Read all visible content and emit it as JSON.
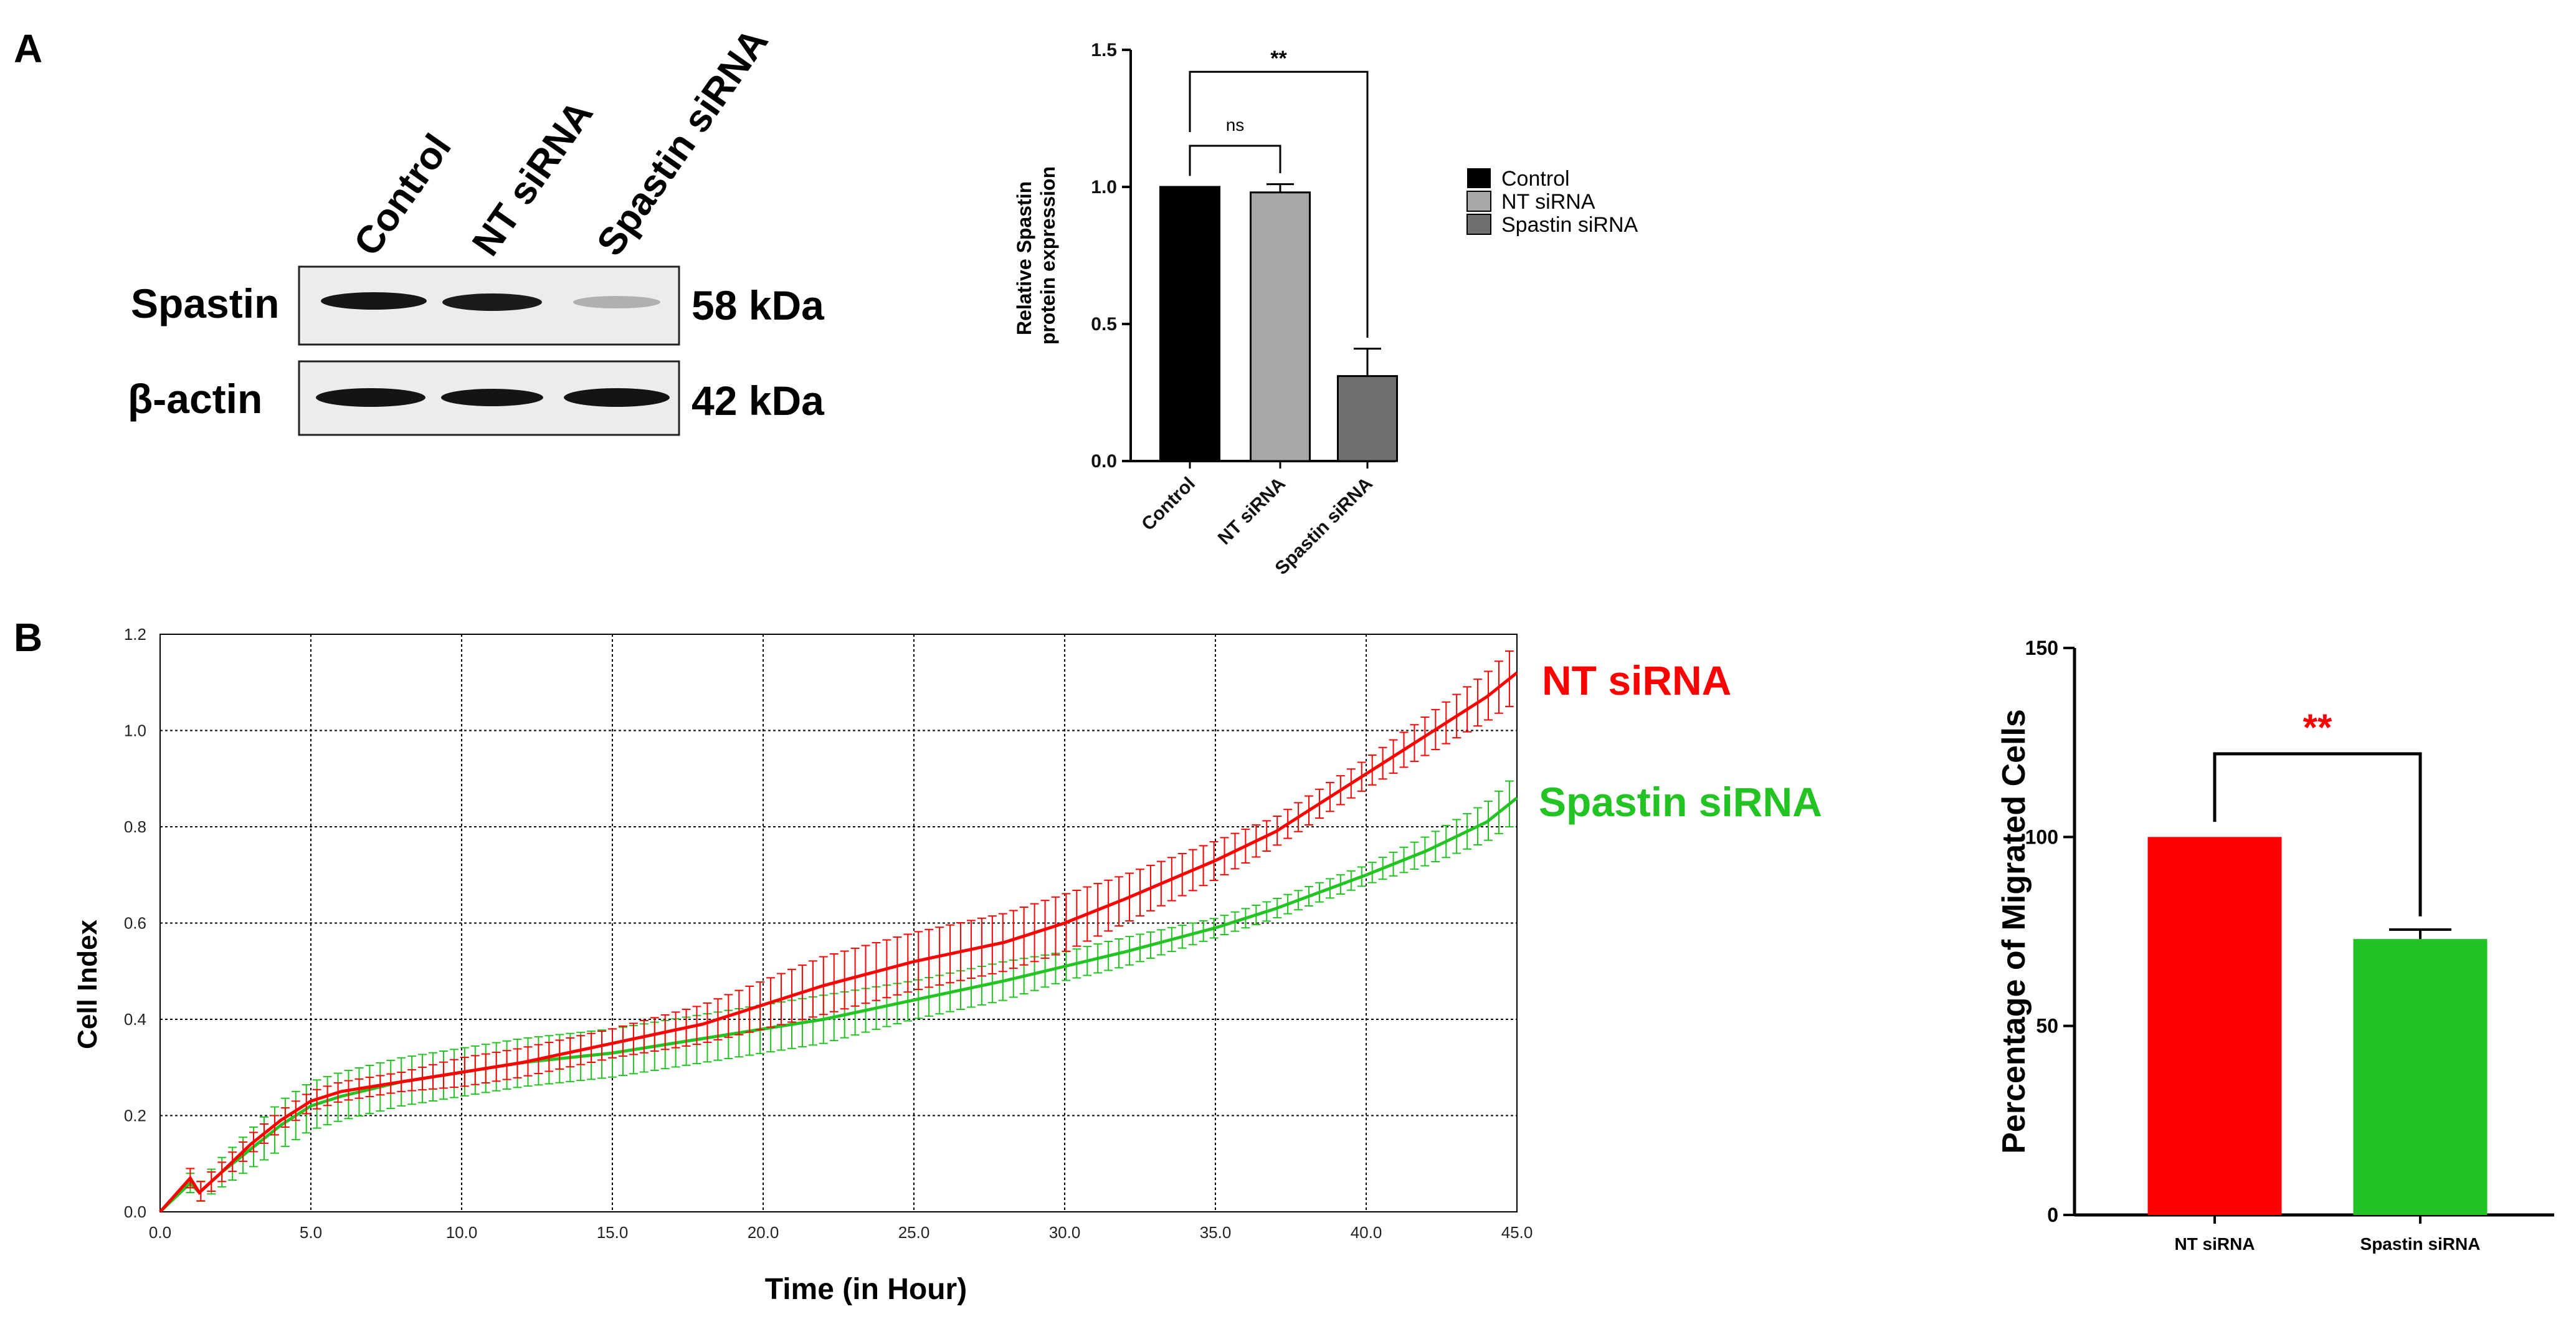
{
  "panels": {
    "a_letter": "A",
    "b_letter": "B"
  },
  "western_blot": {
    "lanes": [
      "Control",
      "NT siRNA",
      "Spastin siRNA"
    ],
    "rows": [
      {
        "protein": "Spastin",
        "size": "58 kDa",
        "intensities": [
          1.0,
          0.98,
          0.31
        ]
      },
      {
        "protein": "β-actin",
        "size": "42 kDa",
        "intensities": [
          1.0,
          0.95,
          1.0
        ]
      }
    ]
  },
  "colors": {
    "control": "#000000",
    "nt": "#a8a8a8",
    "spastin_gray": "#707070",
    "red": "#ff0000",
    "green": "#22c322",
    "grid": "#000000"
  },
  "chart_data": [
    {
      "id": "A-bar",
      "type": "bar",
      "title": "",
      "ylabel": "Relative Spastin protein expression",
      "ylabel_lines": [
        "Relative Spastin",
        "protein expression"
      ],
      "categories": [
        "Control",
        "NT siRNA",
        "Spastin siRNA"
      ],
      "values": [
        1.0,
        0.98,
        0.31
      ],
      "errors": [
        0,
        0.03,
        0.1
      ],
      "ylim": [
        0,
        1.5
      ],
      "yticks": [
        "0.0",
        "0.5",
        "1.0",
        "1.5"
      ],
      "legend": [
        "Control",
        "NT siRNA",
        "Spastin siRNA"
      ],
      "annotations": [
        {
          "from": "Control",
          "to": "NT siRNA",
          "text": "ns"
        },
        {
          "from": "Control",
          "to": "Spastin siRNA",
          "text": "**"
        }
      ]
    },
    {
      "id": "B-line",
      "type": "line",
      "xlabel": "Time (in Hour)",
      "ylabel": "Cell Index",
      "xlim": [
        0,
        45
      ],
      "ylim": [
        0,
        1.2
      ],
      "xticks": [
        "0.0",
        "5.0",
        "10.0",
        "15.0",
        "20.0",
        "25.0",
        "30.0",
        "35.0",
        "40.0",
        "45.0"
      ],
      "yticks": [
        "0.0",
        "0.2",
        "0.4",
        "0.6",
        "0.8",
        "1.0",
        "1.2"
      ],
      "grid": true,
      "series": [
        {
          "name": "NT siRNA",
          "x": [
            0,
            1,
            1.3,
            2,
            3,
            4,
            5,
            6,
            8,
            10,
            12,
            15,
            18,
            20,
            22,
            25,
            28,
            30,
            32,
            35,
            37,
            40,
            42,
            44,
            45
          ],
          "y": [
            0,
            0.07,
            0.04,
            0.08,
            0.14,
            0.19,
            0.23,
            0.25,
            0.27,
            0.29,
            0.31,
            0.35,
            0.39,
            0.43,
            0.47,
            0.52,
            0.56,
            0.6,
            0.65,
            0.73,
            0.79,
            0.91,
            0.99,
            1.07,
            1.12
          ],
          "err": [
            0,
            0.02,
            0.02,
            0.02,
            0.02,
            0.02,
            0.02,
            0.02,
            0.02,
            0.03,
            0.03,
            0.03,
            0.04,
            0.05,
            0.06,
            0.06,
            0.06,
            0.06,
            0.05,
            0.04,
            0.03,
            0.03,
            0.04,
            0.05,
            0.06
          ]
        },
        {
          "name": "Spastin siRNA",
          "x": [
            0,
            1,
            1.3,
            2,
            3,
            4,
            5,
            6,
            8,
            10,
            12,
            15,
            18,
            20,
            22,
            25,
            28,
            30,
            32,
            35,
            37,
            40,
            42,
            44,
            45
          ],
          "y": [
            0,
            0.06,
            0.04,
            0.08,
            0.13,
            0.18,
            0.22,
            0.24,
            0.27,
            0.29,
            0.31,
            0.33,
            0.36,
            0.38,
            0.4,
            0.44,
            0.48,
            0.51,
            0.54,
            0.59,
            0.63,
            0.7,
            0.75,
            0.81,
            0.86
          ],
          "err": [
            0,
            0.02,
            0.02,
            0.03,
            0.04,
            0.05,
            0.05,
            0.05,
            0.05,
            0.05,
            0.05,
            0.05,
            0.05,
            0.05,
            0.05,
            0.04,
            0.04,
            0.03,
            0.03,
            0.02,
            0.02,
            0.02,
            0.03,
            0.04,
            0.05
          ]
        }
      ]
    },
    {
      "id": "B-bar",
      "type": "bar",
      "ylabel": "Percentage of Migrated Cells",
      "categories": [
        "NT siRNA",
        "Spastin siRNA"
      ],
      "values": [
        100,
        73
      ],
      "errors": [
        0,
        2.5
      ],
      "ylim": [
        0,
        150
      ],
      "yticks": [
        "0",
        "50",
        "100",
        "150"
      ],
      "annotations": [
        {
          "from": "NT siRNA",
          "to": "Spastin siRNA",
          "text": "**"
        }
      ]
    }
  ]
}
